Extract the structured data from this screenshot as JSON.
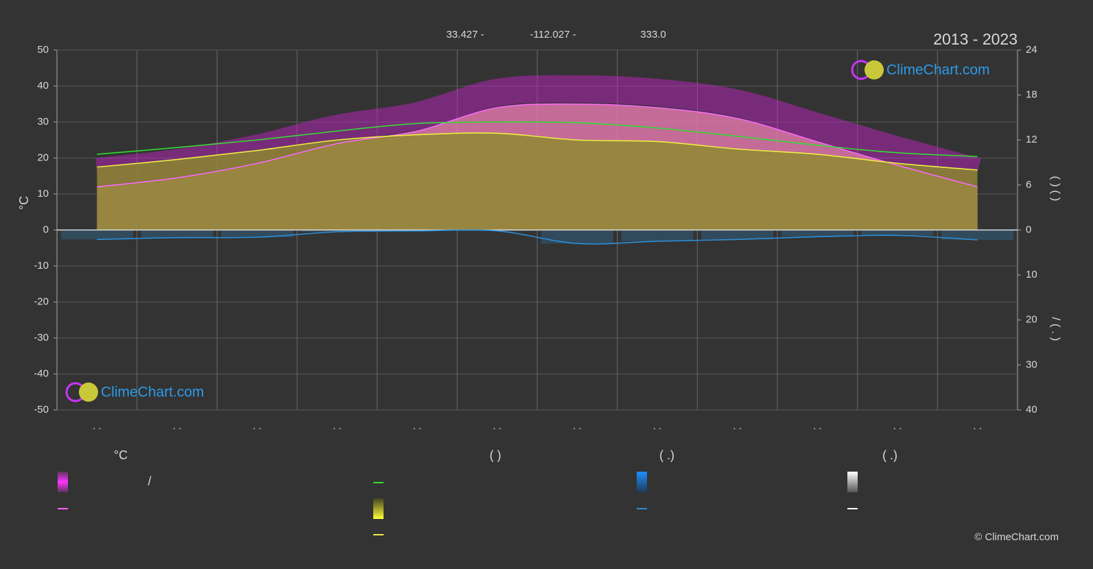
{
  "chart_data": {
    "type": "line",
    "subtitle_parts": [
      "33.427 -",
      "-112.027 -",
      "333.0"
    ],
    "period": "2013 - 2023",
    "watermark": "ClimeChart.com",
    "ylabel": "°C",
    "y2label": "(   )     (   )",
    "y3label": "/     (  .  )",
    "categories": [
      ". .",
      ". .",
      ". .",
      ". .",
      ". .",
      ". .",
      ". .",
      ". .",
      ". .",
      ". .",
      ". .",
      ". ."
    ],
    "ylim": [
      -50,
      50
    ],
    "yticks": [
      -50,
      -40,
      -30,
      -20,
      -10,
      0,
      10,
      20,
      30,
      40,
      50
    ],
    "y2lim": [
      -24,
      24
    ],
    "y2ticks": [
      0,
      6,
      12,
      18,
      24
    ],
    "y3lim": [
      -40,
      40
    ],
    "y3_inverted": true,
    "y3ticks": [
      0,
      10,
      20,
      30,
      40
    ],
    "grid": true,
    "series": [
      {
        "color": "#ff66ff",
        "axis": "y",
        "area": true,
        "area_color": "#e87ab0",
        "values": [
          12,
          14.5,
          18.5,
          24,
          27.5,
          34,
          35,
          34,
          31,
          24.5,
          18,
          12
        ]
      },
      {
        "color": "#33dd33",
        "axis": "y2",
        "values": [
          10.1,
          11.0,
          12.0,
          13.2,
          14.2,
          14.4,
          14.3,
          13.6,
          12.5,
          11.3,
          10.3,
          9.8
        ]
      },
      {
        "color": "#eeee44",
        "axis": "y2",
        "area": true,
        "area_color": "#8c8c2a",
        "values": [
          8.4,
          9.4,
          10.6,
          12.0,
          12.7,
          12.9,
          12.0,
          11.8,
          10.8,
          10.1,
          8.9,
          8.0
        ]
      },
      {
        "color": "#2b8fd8",
        "axis": "y3",
        "bars": true,
        "values": [
          2.1,
          1.7,
          1.6,
          0.4,
          0.2,
          0.2,
          3.0,
          2.5,
          2.1,
          1.5,
          1.2,
          2.2
        ]
      }
    ],
    "legend": {
      "headers": [
        "°C",
        "(          )",
        "(    .)",
        "(    .)"
      ],
      "item_text": "/"
    },
    "copyright": "© ClimeChart.com"
  }
}
